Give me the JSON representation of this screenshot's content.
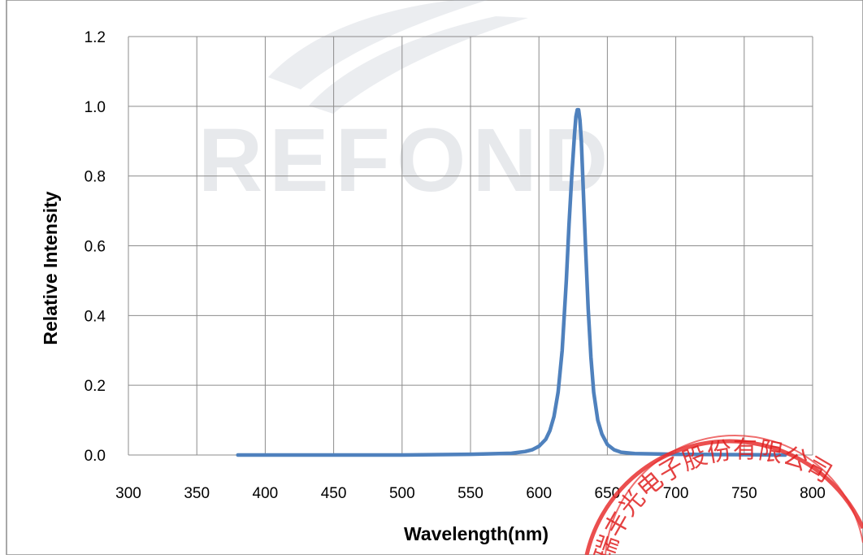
{
  "chart_data": {
    "type": "line",
    "title": "",
    "xlabel": "Wavelength(nm)",
    "ylabel": "Relative Intensity",
    "xlim": [
      300,
      800
    ],
    "ylim": [
      0,
      1.2
    ],
    "x_ticks": [
      300,
      350,
      400,
      450,
      500,
      550,
      600,
      650,
      700,
      750,
      800
    ],
    "y_ticks": [
      0.0,
      0.2,
      0.4,
      0.6,
      0.8,
      1.0,
      1.2
    ],
    "x_tick_labels": [
      "300",
      "350",
      "400",
      "450",
      "500",
      "550",
      "600",
      "650",
      "700",
      "750",
      "800"
    ],
    "y_tick_labels": [
      "0.0",
      "0.2",
      "0.4",
      "0.6",
      "0.8",
      "1.0",
      "1.2"
    ],
    "grid": true,
    "legend": "none",
    "series": [
      {
        "color": "#4F81BD",
        "x": [
          380,
          400,
          450,
          500,
          550,
          580,
          590,
          595,
          600,
          605,
          608,
          611,
          614,
          617,
          620,
          622,
          624,
          626,
          627,
          628,
          629,
          630,
          631,
          632,
          634,
          636,
          638,
          640,
          643,
          646,
          650,
          655,
          660,
          670,
          700,
          750,
          780
        ],
        "y": [
          0.0,
          0.0,
          0.0,
          0.0,
          0.002,
          0.005,
          0.01,
          0.015,
          0.025,
          0.045,
          0.07,
          0.11,
          0.18,
          0.3,
          0.5,
          0.66,
          0.8,
          0.92,
          0.97,
          0.99,
          0.99,
          0.96,
          0.9,
          0.8,
          0.6,
          0.42,
          0.28,
          0.18,
          0.1,
          0.06,
          0.03,
          0.015,
          0.008,
          0.004,
          0.002,
          0.001,
          0.0
        ]
      }
    ]
  },
  "watermark": {
    "text": "REFOND"
  },
  "seal": {
    "text": "瑞丰光电子股份有限公司",
    "color": "#e02020"
  }
}
